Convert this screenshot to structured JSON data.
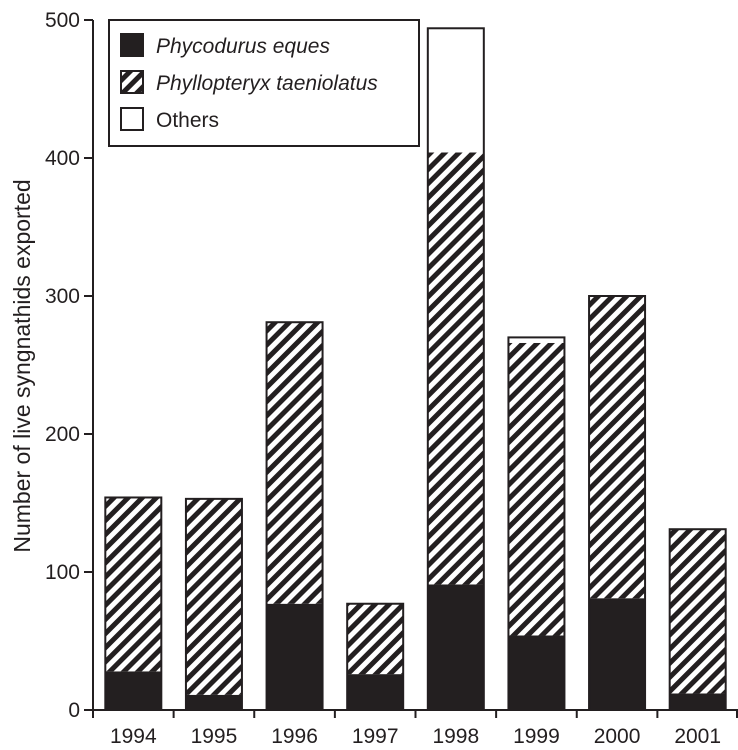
{
  "chart_data": {
    "type": "bar",
    "stacked": true,
    "title": "",
    "xlabel": "",
    "ylabel": "Number of live syngnathids exported",
    "ylim": [
      0,
      500
    ],
    "yticks": [
      0,
      100,
      200,
      300,
      400,
      500
    ],
    "categories": [
      "1994",
      "1995",
      "1996",
      "1997",
      "1998",
      "1999",
      "2000",
      "2001"
    ],
    "series": [
      {
        "name": "Phycodurus eques",
        "italic": true,
        "pattern": "solid",
        "color": "#231f20",
        "values": [
          28,
          11,
          77,
          26,
          91,
          54,
          81,
          12
        ]
      },
      {
        "name": "Phyllopteryx taeniolatus",
        "italic": true,
        "pattern": "hatch",
        "color": "#231f20",
        "values": [
          126,
          142,
          204,
          51,
          313,
          212,
          219,
          119
        ]
      },
      {
        "name": "Others",
        "italic": false,
        "pattern": "open",
        "color": "#ffffff",
        "values": [
          0,
          0,
          0,
          0,
          90,
          4,
          0,
          0
        ]
      }
    ],
    "legend_position": "top-left",
    "grid": false
  },
  "colors": {
    "ink": "#231f20",
    "background": "#ffffff"
  }
}
